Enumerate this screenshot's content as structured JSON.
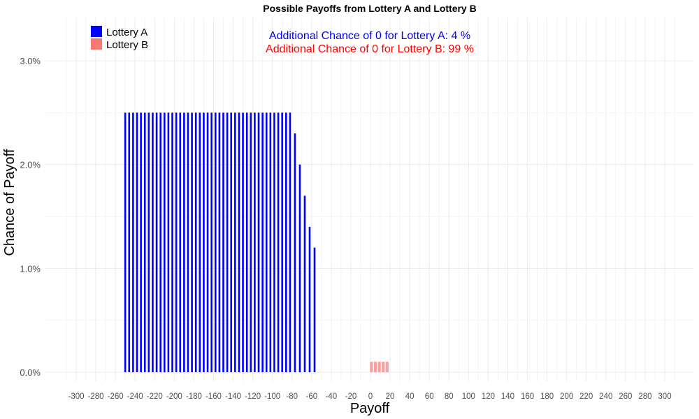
{
  "chart_data": {
    "type": "bar",
    "title": "Possible Payoffs from Lottery A and Lottery B",
    "xlabel": "Payoff",
    "ylabel": "Chance of Payoff",
    "xlim": [
      -310,
      310
    ],
    "ylim": [
      0,
      3.3
    ],
    "grid": true,
    "legend_position": "top-left",
    "x_ticks": [
      "-300",
      "-280",
      "-260",
      "-240",
      "-220",
      "-200",
      "-180",
      "-160",
      "-140",
      "-120",
      "-100",
      "-80",
      "-60",
      "-40",
      "-20",
      "0",
      "20",
      "40",
      "60",
      "80",
      "100",
      "120",
      "140",
      "160",
      "180",
      "200",
      "220",
      "240",
      "260",
      "280",
      "300"
    ],
    "y_ticks": [
      "0.0%",
      "1.0%",
      "2.0%",
      "3.0%"
    ],
    "annotations": [
      {
        "text": "Additional Chance of 0 for Lottery A:  4 %",
        "color": "#0000ff"
      },
      {
        "text": "Additional Chance of 0 for Lottery B:  99 %",
        "color": "#ff0000"
      }
    ],
    "series": [
      {
        "name": "Lottery A",
        "color": "#0000ff",
        "x": [
          -250,
          -246,
          -242,
          -238,
          -234,
          -230,
          -226,
          -222,
          -218,
          -214,
          -210,
          -206,
          -202,
          -198,
          -194,
          -190,
          -186,
          -182,
          -178,
          -174,
          -170,
          -166,
          -162,
          -158,
          -154,
          -150,
          -146,
          -142,
          -138,
          -134,
          -130,
          -126,
          -122,
          -118,
          -114,
          -110,
          -106,
          -102,
          -98,
          -94,
          -90,
          -86,
          -82,
          -77,
          -72,
          -67,
          -62,
          -57
        ],
        "values": [
          2.5,
          2.5,
          2.5,
          2.5,
          2.5,
          2.5,
          2.5,
          2.5,
          2.5,
          2.5,
          2.5,
          2.5,
          2.5,
          2.5,
          2.5,
          2.5,
          2.5,
          2.5,
          2.5,
          2.5,
          2.5,
          2.5,
          2.5,
          2.5,
          2.5,
          2.5,
          2.5,
          2.5,
          2.5,
          2.5,
          2.5,
          2.5,
          2.5,
          2.5,
          2.5,
          2.5,
          2.5,
          2.5,
          2.5,
          2.5,
          2.5,
          2.5,
          2.5,
          2.3,
          2.0,
          1.7,
          1.4,
          1.2
        ]
      },
      {
        "name": "Lottery B",
        "color": "#f8a0a0",
        "x": [
          1,
          5,
          9,
          13,
          17
        ],
        "values": [
          0.1,
          0.1,
          0.1,
          0.1,
          0.1
        ]
      }
    ]
  },
  "legend": [
    {
      "label": "Lottery A",
      "color": "#0000ff"
    },
    {
      "label": "Lottery B",
      "color": "#f87878"
    }
  ]
}
